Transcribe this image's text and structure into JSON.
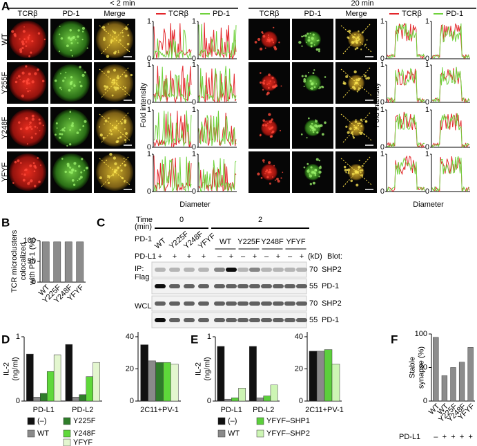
{
  "panel_a": {
    "label": "A",
    "groups": [
      {
        "time": "< 2 min",
        "columns": [
          "TCRβ",
          "PD-1",
          "Merge"
        ]
      },
      {
        "time": "20 min",
        "columns": [
          "TCRβ",
          "PD-1",
          "Merge"
        ]
      }
    ],
    "rows": [
      "WT",
      "Y255F",
      "Y248F",
      "YFYF"
    ],
    "legend": [
      {
        "name": "TCRβ",
        "color": "#e3262b"
      },
      {
        "name": "PD-1",
        "color": "#6fd23c"
      }
    ],
    "y_label": "Fold intensity",
    "x_label": "Diameter",
    "yticks": [
      0,
      1
    ]
  },
  "panel_c": {
    "label": "C",
    "time_label": [
      "Time",
      "(min)"
    ],
    "times": [
      "0",
      "2"
    ],
    "pd1_label": "PD-1",
    "pd1_values": [
      "WT",
      "Y225F",
      "Y248F",
      "YFYF",
      "WT",
      "Y225F",
      "Y248F",
      "YFYF"
    ],
    "pdl1_label": "PD-L1",
    "pdl1_values": [
      "+",
      "+",
      "+",
      "+",
      "–",
      "+",
      "–",
      "+",
      "–",
      "+",
      "–",
      "+"
    ],
    "kd_label": "(kD)",
    "blot_label": "Blot:",
    "ip_label": [
      "IP:",
      "Flag"
    ],
    "wcl_label": "WCL",
    "blots": [
      {
        "kd": "70",
        "name": "SHP2"
      },
      {
        "kd": "55",
        "name": "PD-1"
      },
      {
        "kd": "70",
        "name": "SHP2"
      },
      {
        "kd": "55",
        "name": "PD-1"
      }
    ]
  },
  "chart_data": [
    {
      "panel": "B",
      "type": "bar",
      "y_label": [
        "TCR microclusters",
        "colocalized",
        "with PD-1 (%)"
      ],
      "categories": [
        "WT",
        "Y225F",
        "Y248F",
        "YFYF"
      ],
      "values": [
        97,
        97,
        97,
        97
      ],
      "color": "#8c8c8c",
      "ylim": [
        0,
        100
      ],
      "yticks": [
        0,
        50,
        100
      ]
    },
    {
      "panel": "D",
      "type": "bar",
      "y_label": [
        "IL-2",
        "(ng/ml)"
      ],
      "categories": [
        "PD-L1",
        "PD-L2"
      ],
      "series": [
        {
          "name": "(–)",
          "color": "#111111",
          "values": [
            0.73,
            0.88
          ]
        },
        {
          "name": "WT",
          "color": "#8a8a8a",
          "values": [
            0.06,
            0.06
          ]
        },
        {
          "name": "Y225F",
          "color": "#2f7d2a",
          "values": [
            0.12,
            0.1
          ]
        },
        {
          "name": "Y248F",
          "color": "#5ed83a",
          "values": [
            0.46,
            0.38
          ]
        },
        {
          "name": "YFYF",
          "color": "#e3f6cf",
          "values": [
            0.72,
            0.6
          ]
        }
      ],
      "ylim": [
        0,
        1
      ],
      "yticks": [
        0,
        1
      ]
    },
    {
      "type": "bar",
      "categories": [
        "2C11+PV-1"
      ],
      "series": [
        {
          "color": "#111111",
          "values": [
            35
          ]
        },
        {
          "color": "#8a8a8a",
          "values": [
            25
          ]
        },
        {
          "color": "#2f7d2a",
          "values": [
            24
          ]
        },
        {
          "color": "#5ed83a",
          "values": [
            24
          ]
        },
        {
          "color": "#e3f6cf",
          "values": [
            23
          ]
        }
      ],
      "ylim": [
        0,
        43
      ],
      "yticks": [
        0,
        20,
        40
      ]
    },
    {
      "panel": "E",
      "type": "bar",
      "y_label": [
        "IL-2",
        "(ng/ml)"
      ],
      "categories": [
        "PD-L1",
        "PD-L2"
      ],
      "series": [
        {
          "name": "(–)",
          "color": "#111111",
          "values": [
            0.85,
            0.85
          ]
        },
        {
          "name": "WT",
          "color": "#8a8a8a",
          "values": [
            0.03,
            0.05
          ]
        },
        {
          "name": "YFYF–SHP1",
          "color": "#5ccf3c",
          "values": [
            0.05,
            0.08
          ]
        },
        {
          "name": "YFYF–SHP2",
          "color": "#cdf5b4",
          "values": [
            0.2,
            0.25
          ]
        }
      ],
      "ylim": [
        0,
        1
      ],
      "yticks": [
        0,
        1
      ]
    },
    {
      "type": "bar",
      "categories": [
        "2C11+PV-1"
      ],
      "series": [
        {
          "color": "#111111",
          "values": [
            31
          ]
        },
        {
          "color": "#8a8a8a",
          "values": [
            31
          ]
        },
        {
          "color": "#5ccf3c",
          "values": [
            32
          ]
        },
        {
          "color": "#cdf5b4",
          "values": [
            23
          ]
        }
      ],
      "ylim": [
        0,
        43
      ],
      "yticks": [
        0,
        20,
        40
      ]
    },
    {
      "panel": "F",
      "type": "bar",
      "y_label": [
        "Stable",
        "synapse (%)"
      ],
      "categories": [
        "WT",
        "WT",
        "Y225F",
        "Y248F",
        "YFYF"
      ],
      "values": [
        95,
        38,
        50,
        58,
        80
      ],
      "color": "#8c8c8c",
      "ylim": [
        0,
        100
      ],
      "yticks": [
        0,
        50,
        100
      ],
      "row_label": "PD-L1",
      "row_values": [
        "–",
        "+",
        "+",
        "+",
        "+"
      ]
    }
  ]
}
